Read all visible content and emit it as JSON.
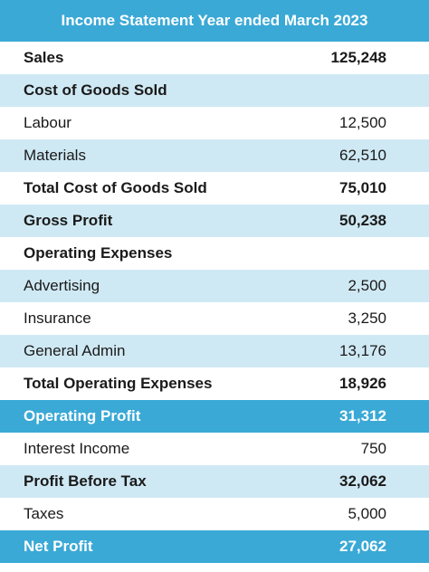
{
  "title": "Income Statement Year ended March 2023",
  "rows": [
    {
      "label": "Sales",
      "value": "125,248",
      "bold": true,
      "shade": "white"
    },
    {
      "label": "Cost of Goods Sold",
      "value": "",
      "bold": true,
      "shade": "light"
    },
    {
      "label": "Labour",
      "value": "12,500",
      "bold": false,
      "shade": "white"
    },
    {
      "label": "Materials",
      "value": "62,510",
      "bold": false,
      "shade": "light"
    },
    {
      "label": "Total Cost of Goods Sold",
      "value": "75,010",
      "bold": true,
      "shade": "white"
    },
    {
      "label": "Gross Profit",
      "value": "50,238",
      "bold": true,
      "shade": "light"
    },
    {
      "label": "Operating Expenses",
      "value": "",
      "bold": true,
      "shade": "white"
    },
    {
      "label": "Advertising",
      "value": "2,500",
      "bold": false,
      "shade": "light"
    },
    {
      "label": "Insurance",
      "value": "3,250",
      "bold": false,
      "shade": "white"
    },
    {
      "label": "General Admin",
      "value": "13,176",
      "bold": false,
      "shade": "light"
    },
    {
      "label": "Total Operating Expenses",
      "value": "18,926",
      "bold": true,
      "shade": "white"
    },
    {
      "label": "Operating Profit",
      "value": "31,312",
      "bold": true,
      "shade": "dark"
    },
    {
      "label": "Interest Income",
      "value": "750",
      "bold": false,
      "shade": "white"
    },
    {
      "label": "Profit Before Tax",
      "value": "32,062",
      "bold": true,
      "shade": "light"
    },
    {
      "label": "Taxes",
      "value": "5,000",
      "bold": false,
      "shade": "white"
    },
    {
      "label": "Net Profit",
      "value": "27,062",
      "bold": true,
      "shade": "dark"
    }
  ],
  "colors": {
    "header": "#3aa9d6",
    "light_row": "#cfe9f4",
    "white_row": "#ffffff"
  }
}
